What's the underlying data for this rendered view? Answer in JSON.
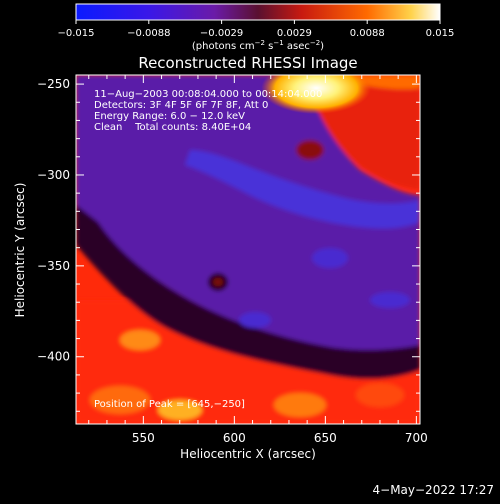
{
  "chart_data": {
    "type": "heatmap",
    "colorbar": {
      "ticks": [
        "−0.015",
        "−0.0088",
        "−0.0029",
        "0.0029",
        "0.0088",
        "0.015"
      ],
      "units": "(photons cm",
      "units_sup1": "−2",
      "units_mid": " s",
      "units_sup2": "−1",
      "units_end": " asec",
      "units_sup3": "−2",
      "units_close": ")"
    },
    "title": "Reconstructed RHESSI Image",
    "xlabel": "Heliocentric X (arcsec)",
    "ylabel": "Heliocentric Y (arcsec)",
    "xlim": [
      513,
      702
    ],
    "ylim": [
      -437,
      -245
    ],
    "xticks": [
      550,
      600,
      650,
      700
    ],
    "xtick_labels": [
      "550",
      "600",
      "650",
      "700"
    ],
    "yticks": [
      -250,
      -300,
      -350,
      -400
    ],
    "ytick_labels": [
      "−250",
      "−300",
      "−350",
      "−400"
    ],
    "info_lines": [
      "11−Aug−2003 00:08:04.000 to 00:14:04.000",
      "Detectors: 3F 4F 5F 6F 7F 8F, Att 0",
      "Energy Range: 6.0 − 12.0 keV",
      "Clean    Total counts: 8.40E+04"
    ],
    "peak_label": "Position of Peak = [645,−250]",
    "peak": [
      645,
      -250
    ],
    "palette": {
      "background_band": "#5a1fa8",
      "deep_band": "#4a2ad0",
      "hot_edge": "#e83010",
      "outer": "#ff2a0a",
      "peak": "#ffffcc"
    }
  },
  "footer": {
    "date": "4−May−2022 17:27"
  }
}
